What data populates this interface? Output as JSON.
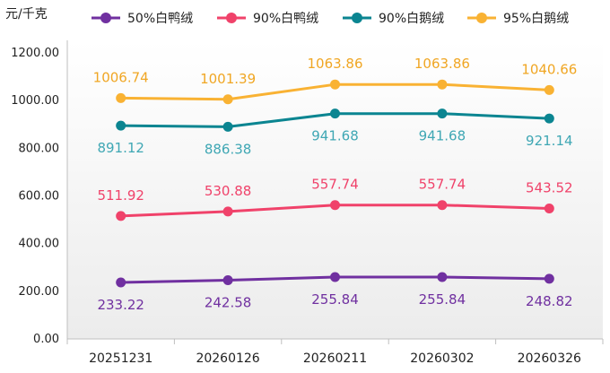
{
  "chart_data": {
    "type": "line",
    "unit_label": "元/千克",
    "categories": [
      "20251231",
      "20260126",
      "20260211",
      "20260302",
      "20260326"
    ],
    "y_ticks": [
      "0.00",
      "200.00",
      "400.00",
      "600.00",
      "800.00",
      "1000.00",
      "1200.00"
    ],
    "ylim": [
      0,
      1200
    ],
    "grid": false,
    "legend_position": "top",
    "series": [
      {
        "name": "50%白鸭绒",
        "color": "#7030a0",
        "label_color": "#7030a0",
        "label_position": "below",
        "values": [
          233.22,
          242.58,
          255.84,
          255.84,
          248.82
        ],
        "labels": [
          "233.22",
          "242.58",
          "255.84",
          "255.84",
          "248.82"
        ]
      },
      {
        "name": "90%白鸭绒",
        "color": "#f0426a",
        "label_color": "#f0426a",
        "label_position": "above",
        "values": [
          511.92,
          530.88,
          557.74,
          557.74,
          543.52
        ],
        "labels": [
          "511.92",
          "530.88",
          "557.74",
          "557.74",
          "543.52"
        ]
      },
      {
        "name": "90%白鹅绒",
        "color": "#0b8591",
        "label_color": "#3fa7b4",
        "label_position": "below",
        "values": [
          891.12,
          886.38,
          941.68,
          941.68,
          921.14
        ],
        "labels": [
          "891.12",
          "886.38",
          "941.68",
          "941.68",
          "921.14"
        ]
      },
      {
        "name": "95%白鹅绒",
        "color": "#f9b233",
        "label_color": "#f0a623",
        "label_position": "above",
        "values": [
          1006.74,
          1001.39,
          1063.86,
          1063.86,
          1040.66
        ],
        "labels": [
          "1006.74",
          "1001.39",
          "1063.86",
          "1063.86",
          "1040.66"
        ]
      }
    ]
  }
}
